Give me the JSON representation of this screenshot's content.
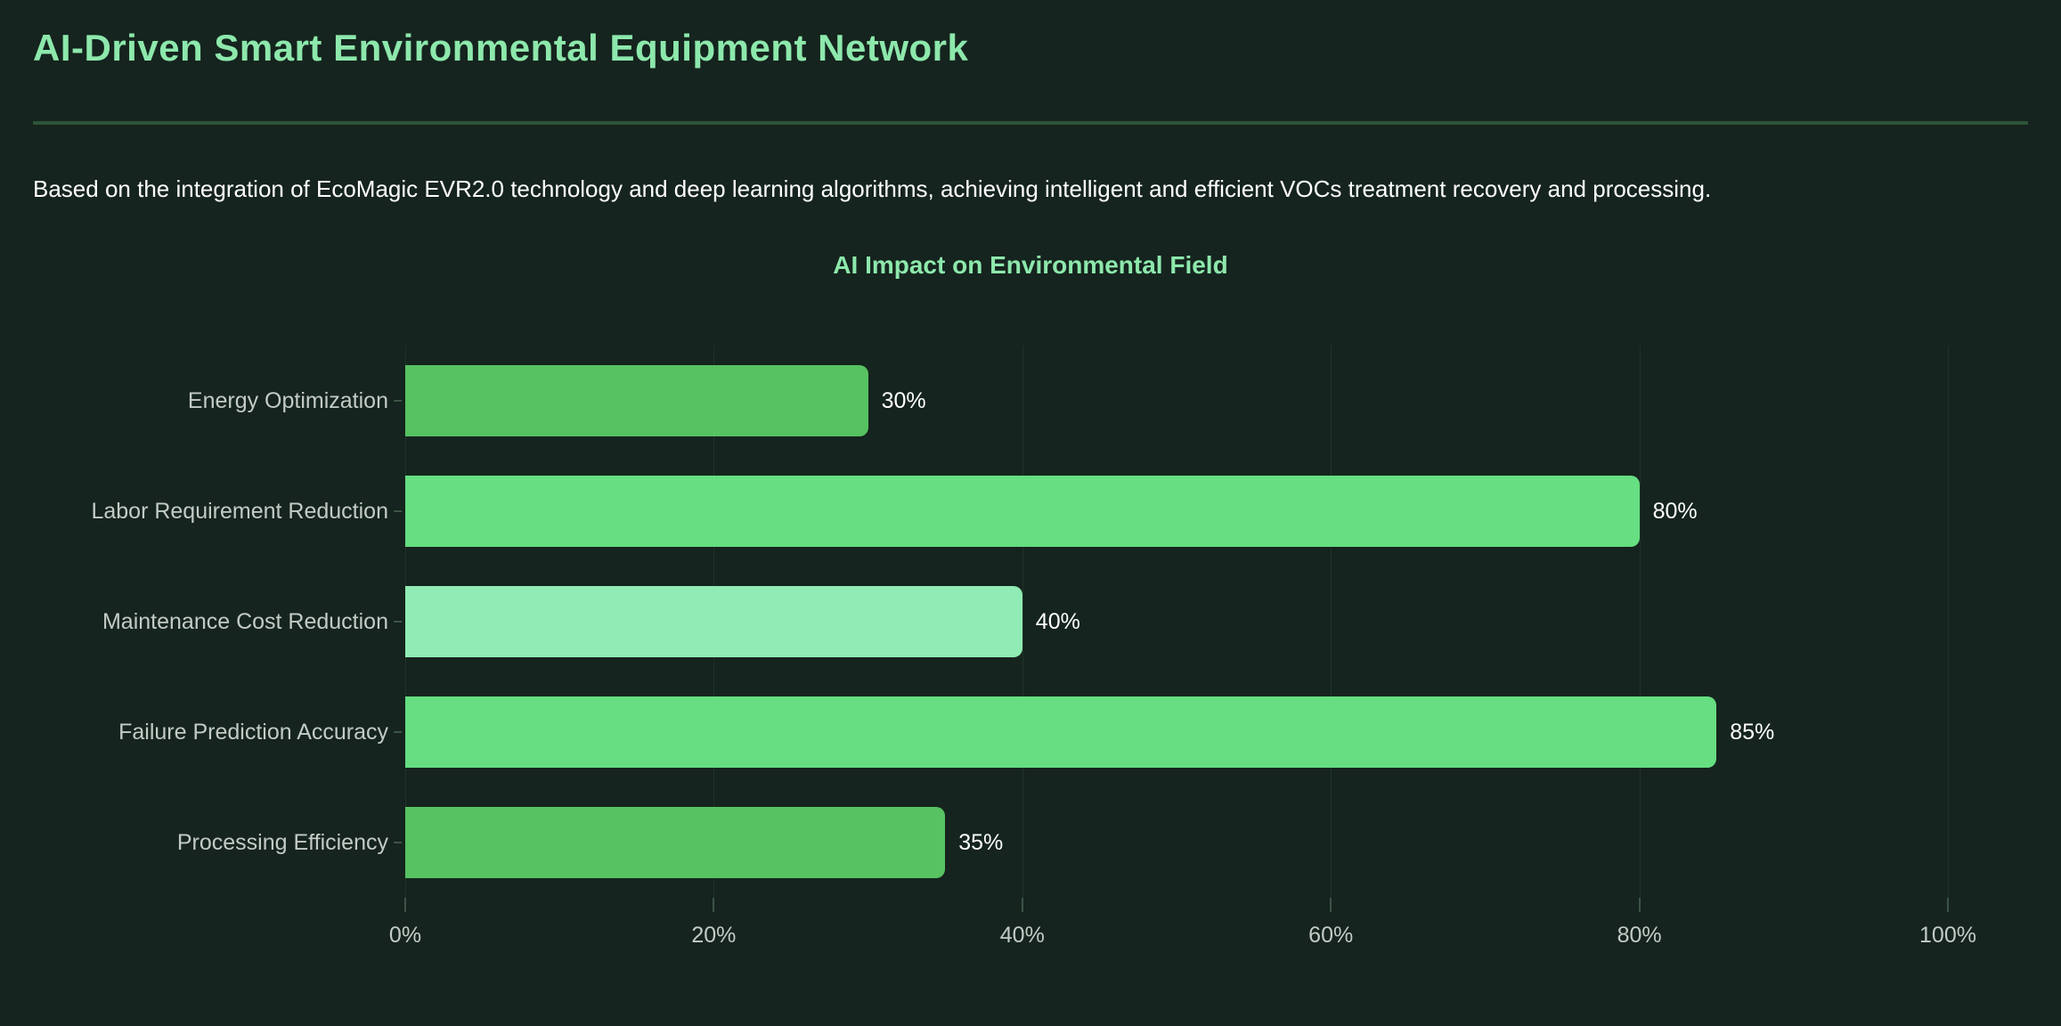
{
  "page": {
    "title": "AI-Driven Smart Environmental Equipment Network",
    "description": "Based on the integration of EcoMagic EVR2.0 technology and deep learning algorithms, achieving intelligent and efficient VOCs treatment recovery and processing."
  },
  "colors": {
    "background": "#15241e",
    "accent_green": "#8de8ac",
    "divider_green": "#2e5438",
    "label_gray": "#c4cbc6",
    "gridline": "#1e332a",
    "axis_tick": "#3b5447",
    "value_text": "#ffffff",
    "bar_medium_green": "#57c262",
    "bar_light_green": "#66de81",
    "bar_mint_green": "#90ebb4"
  },
  "chart_data": {
    "type": "bar",
    "orientation": "horizontal",
    "title": "AI Impact on Environmental Field",
    "categories": [
      "Energy Optimization",
      "Labor Requirement Reduction",
      "Maintenance Cost Reduction",
      "Failure Prediction Accuracy",
      "Processing Efficiency"
    ],
    "values": [
      30,
      80,
      40,
      85,
      35
    ],
    "value_labels": [
      "30%",
      "80%",
      "40%",
      "85%",
      "35%"
    ],
    "bar_colors": [
      "#57c262",
      "#66de81",
      "#90ebb4",
      "#66de81",
      "#57c262"
    ],
    "xlim": [
      0,
      100
    ],
    "x_tick_values": [
      0,
      20,
      40,
      60,
      80,
      100
    ],
    "x_tick_labels": [
      "0%",
      "20%",
      "40%",
      "60%",
      "80%",
      "100%"
    ],
    "grid": true,
    "legend": false
  }
}
